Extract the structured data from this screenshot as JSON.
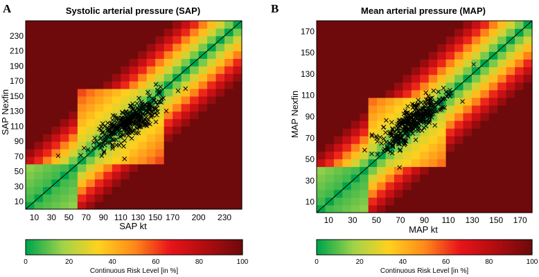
{
  "chart_data": [
    {
      "type": "heatmap",
      "panel_label": "A",
      "title": "Systolic arterial pressure (SAP)",
      "xlabel": "SAP kt",
      "ylabel": "SAP Nexfin",
      "xlim": [
        0,
        250
      ],
      "ylim": [
        0,
        250
      ],
      "xticks": [
        10,
        30,
        50,
        70,
        90,
        110,
        130,
        150,
        170,
        200,
        230
      ],
      "yticks": [
        10,
        30,
        50,
        70,
        90,
        110,
        130,
        150,
        170,
        190,
        210,
        230
      ],
      "grid_cell_size": 10,
      "identity_line": true,
      "marker": "x",
      "centroid": [
        120,
        115
      ],
      "spread": [
        14,
        13
      ],
      "n_points": 320,
      "grid": false
    },
    {
      "type": "heatmap",
      "panel_label": "B",
      "title": "Mean arterial pressure (MAP)",
      "xlabel": "MAP kt",
      "ylabel": "MAP Nexfin",
      "xlim": [
        0,
        180
      ],
      "ylim": [
        0,
        180
      ],
      "xticks": [
        10,
        30,
        50,
        70,
        90,
        110,
        130,
        150,
        170
      ],
      "yticks": [
        10,
        30,
        50,
        70,
        90,
        110,
        130,
        150,
        170
      ],
      "grid_cell_size": 7.2,
      "identity_line": true,
      "marker": "x",
      "centroid": [
        80,
        85
      ],
      "spread": [
        10,
        10
      ],
      "n_points": 320,
      "grid": false
    }
  ],
  "colorbar": {
    "label": "Continuous Risk Level [in %]",
    "ticks": [
      0,
      20,
      40,
      60,
      80,
      100
    ],
    "colors": [
      "#00a64c",
      "#9fd34a",
      "#ffd21e",
      "#ff8a1a",
      "#e8141a",
      "#b00d0f",
      "#6e0a0c"
    ]
  }
}
